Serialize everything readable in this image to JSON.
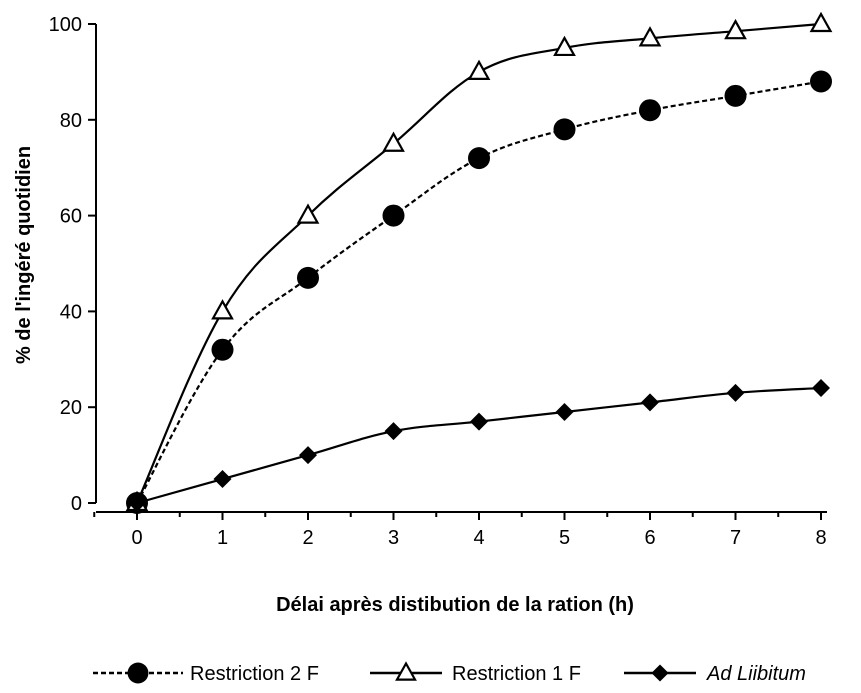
{
  "chart_data": {
    "type": "line",
    "xlabel": "Délai après distibution de la ration (h)",
    "ylabel": "% de l'ingéré quotidien",
    "x": [
      0,
      1,
      2,
      3,
      4,
      5,
      6,
      7,
      8
    ],
    "xlim": [
      0,
      8
    ],
    "ylim": [
      0,
      100
    ],
    "yticks": [
      0,
      20,
      40,
      60,
      80,
      100
    ],
    "grid": false,
    "legend_position": "bottom",
    "series": [
      {
        "name": "Restriction 2 F",
        "values": [
          0,
          32,
          47,
          60,
          72,
          78,
          82,
          85,
          88
        ],
        "marker": "circle-filled",
        "line_style": "dashed",
        "color": "#000000",
        "italic": false
      },
      {
        "name": "Restriction 1 F",
        "values": [
          0,
          40,
          60,
          75,
          90,
          95,
          97,
          98.5,
          100
        ],
        "marker": "triangle-open",
        "line_style": "solid",
        "color": "#000000",
        "italic": false
      },
      {
        "name": "Ad Liibitum",
        "values": [
          0,
          5,
          10,
          15,
          17,
          19,
          21,
          23,
          24
        ],
        "marker": "diamond-filled",
        "line_style": "solid",
        "color": "#000000",
        "italic": true
      }
    ]
  }
}
